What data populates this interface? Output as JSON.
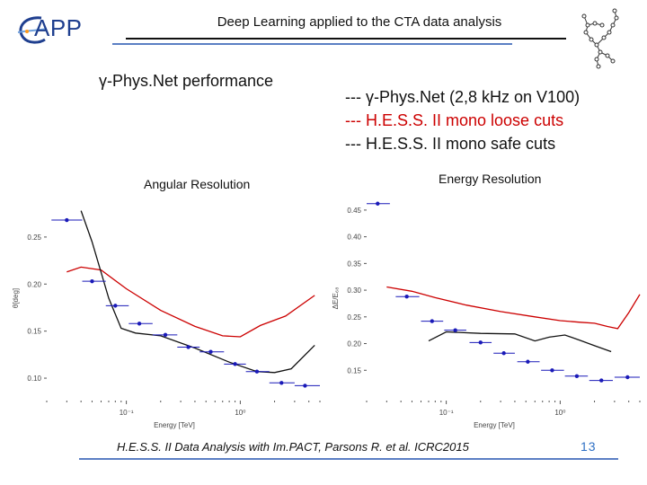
{
  "header": {
    "logo_text": "APP",
    "title": "Deep Learning applied to the CTA data analysis"
  },
  "subtitle": "γ-Phys.Net performance",
  "legend": {
    "items": [
      {
        "label": "--- γ-Phys.Net (2,8 kHz on V100)",
        "color": "#111111"
      },
      {
        "label": "--- H.E.S.S. II mono loose cuts",
        "color": "#cc0000"
      },
      {
        "label": "--- H.E.S.S. II mono safe cuts",
        "color": "#111111"
      }
    ]
  },
  "footer": {
    "reference": "H.E.S.S. II Data Analysis with Im.PACT, Parsons R. et al. ICRC2015",
    "page_number": "13"
  },
  "colors": {
    "points": "#1a1ab8",
    "loose_cuts": "#cc0000",
    "safe_cuts": "#111111",
    "accent_blue": "#5b7fc4"
  },
  "chart_data": [
    {
      "type": "line",
      "title": "Angular Resolution",
      "xlabel": "Energy [TeV]",
      "ylabel": "θ[deg]",
      "x_scale": "log",
      "xlim": [
        0.02,
        5
      ],
      "ylim": [
        0.08,
        0.29
      ],
      "x_ticks": [
        {
          "value": 0.1,
          "label": "10⁻¹"
        },
        {
          "value": 1,
          "label": "10⁰"
        }
      ],
      "y_ticks": [
        0.1,
        0.15,
        0.2,
        0.25
      ],
      "y_tick_labels": [
        "0.10",
        "0.15",
        "0.20",
        "0.25"
      ],
      "series": [
        {
          "style": "points",
          "x": [
            0.03,
            0.05,
            0.08,
            0.13,
            0.22,
            0.35,
            0.55,
            0.9,
            1.4,
            2.3,
            3.7
          ],
          "y": [
            0.268,
            0.203,
            0.177,
            0.158,
            0.146,
            0.133,
            0.128,
            0.115,
            0.107,
            0.095,
            0.092
          ],
          "xerr_lo": [
            0.022,
            0.041,
            0.066,
            0.105,
            0.17,
            0.28,
            0.44,
            0.72,
            1.12,
            1.8,
            3.0
          ],
          "xerr_hi": [
            0.041,
            0.066,
            0.105,
            0.17,
            0.28,
            0.44,
            0.72,
            1.12,
            1.8,
            3.0,
            5.0
          ]
        },
        {
          "style": "line",
          "color_key": "loose_cuts",
          "x": [
            0.03,
            0.04,
            0.06,
            0.1,
            0.2,
            0.4,
            0.7,
            1.0,
            1.5,
            2.5,
            4.5
          ],
          "y": [
            0.213,
            0.218,
            0.215,
            0.195,
            0.172,
            0.155,
            0.145,
            0.144,
            0.156,
            0.166,
            0.188
          ]
        },
        {
          "style": "line",
          "color_key": "safe_cuts",
          "x": [
            0.04,
            0.05,
            0.07,
            0.09,
            0.12,
            0.2,
            0.4,
            0.8,
            1.4,
            2.0,
            2.8,
            4.5
          ],
          "y": [
            0.278,
            0.245,
            0.185,
            0.153,
            0.148,
            0.145,
            0.132,
            0.117,
            0.107,
            0.106,
            0.11,
            0.135
          ]
        }
      ]
    },
    {
      "type": "line",
      "title": "Energy Resolution",
      "xlabel": "Energy [TeV]",
      "ylabel": "ΔE/E₆₈",
      "x_scale": "log",
      "xlim": [
        0.02,
        5
      ],
      "ylim": [
        0.1,
        0.47
      ],
      "x_ticks": [
        {
          "value": 0.1,
          "label": "10⁻¹"
        },
        {
          "value": 1,
          "label": "10⁰"
        }
      ],
      "y_ticks": [
        0.15,
        0.2,
        0.25,
        0.3,
        0.35,
        0.4,
        0.45
      ],
      "y_tick_labels": [
        "0.15",
        "0.20",
        "0.25",
        "0.30",
        "0.35",
        "0.40",
        "0.45"
      ],
      "series": [
        {
          "style": "points",
          "x": [
            0.025,
            0.045,
            0.075,
            0.12,
            0.2,
            0.32,
            0.52,
            0.85,
            1.4,
            2.3,
            3.9
          ],
          "y": [
            0.462,
            0.288,
            0.242,
            0.225,
            0.202,
            0.182,
            0.166,
            0.15,
            0.139,
            0.131,
            0.137
          ],
          "xerr_lo": [
            0.02,
            0.036,
            0.06,
            0.096,
            0.16,
            0.26,
            0.42,
            0.68,
            1.1,
            1.8,
            3.0
          ],
          "xerr_hi": [
            0.032,
            0.058,
            0.094,
            0.15,
            0.25,
            0.4,
            0.66,
            1.08,
            1.75,
            2.9,
            5.0
          ]
        },
        {
          "style": "line",
          "color_key": "loose_cuts",
          "x": [
            0.03,
            0.05,
            0.08,
            0.15,
            0.3,
            0.6,
            1.0,
            1.5,
            2.0,
            2.6,
            3.2,
            4.0,
            5.0
          ],
          "y": [
            0.306,
            0.298,
            0.286,
            0.272,
            0.26,
            0.25,
            0.243,
            0.24,
            0.238,
            0.232,
            0.228,
            0.258,
            0.292
          ]
        },
        {
          "style": "line",
          "color_key": "safe_cuts",
          "x": [
            0.07,
            0.1,
            0.2,
            0.4,
            0.6,
            0.8,
            1.1,
            1.5,
            2.0,
            2.8
          ],
          "y": [
            0.205,
            0.222,
            0.219,
            0.218,
            0.205,
            0.212,
            0.216,
            0.206,
            0.196,
            0.185
          ]
        }
      ]
    }
  ]
}
